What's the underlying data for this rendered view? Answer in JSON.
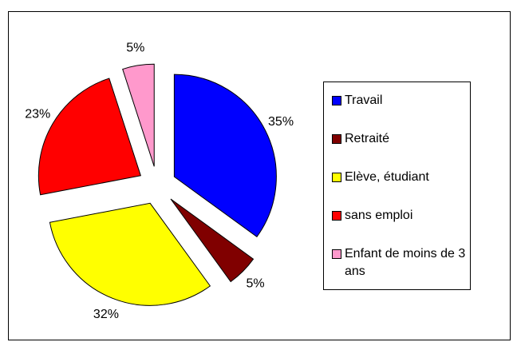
{
  "chart_data": {
    "type": "pie",
    "categories": [
      "Travail",
      "Retraité",
      "Elève, étudiant",
      "sans emploi",
      "Enfant de moins de 3 ans"
    ],
    "values": [
      35,
      5,
      32,
      23,
      5
    ],
    "value_labels": [
      "35%",
      "5%",
      "32%",
      "23%",
      "5%"
    ],
    "colors": [
      "#0000ff",
      "#800000",
      "#ffff00",
      "#ff0000",
      "#ff99cc"
    ],
    "legend": "right"
  }
}
